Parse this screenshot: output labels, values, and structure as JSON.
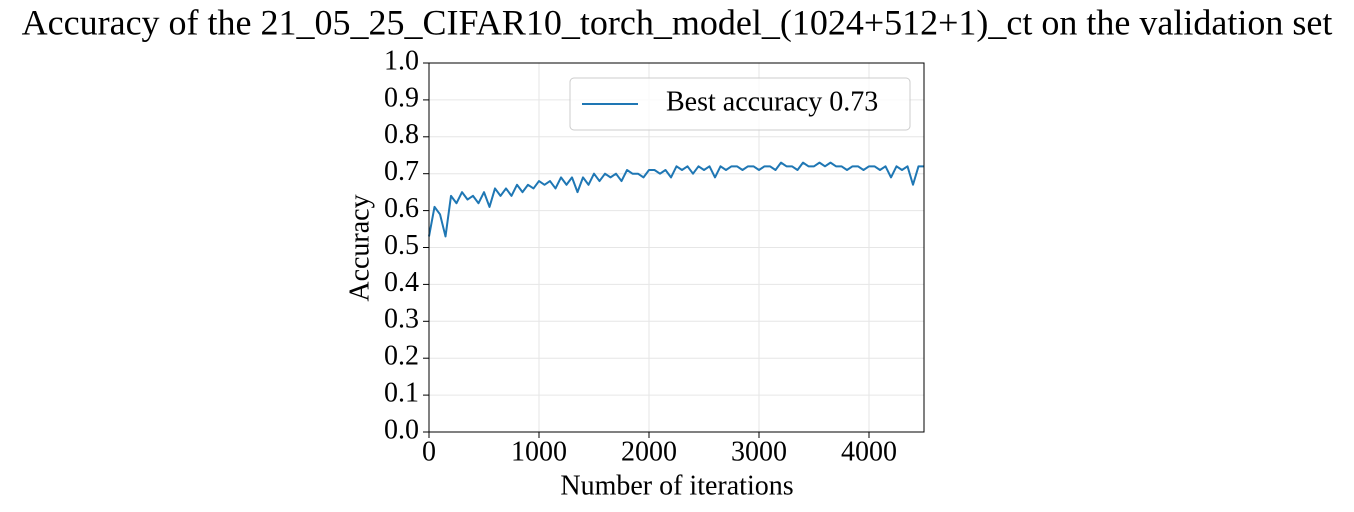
{
  "chart_data": {
    "type": "line",
    "title": "Accuracy of the 21_05_25_CIFAR10_torch_model_(1024+512+1)_ct on the validation set",
    "x_label": "Number of iterations",
    "y_label": "Accuracy",
    "x": [
      0,
      50,
      100,
      150,
      200,
      250,
      300,
      350,
      400,
      450,
      500,
      550,
      600,
      650,
      700,
      750,
      800,
      850,
      900,
      950,
      1000,
      1050,
      1100,
      1150,
      1200,
      1250,
      1300,
      1350,
      1400,
      1450,
      1500,
      1550,
      1600,
      1650,
      1700,
      1750,
      1800,
      1850,
      1900,
      1950,
      2000,
      2050,
      2100,
      2150,
      2200,
      2250,
      2300,
      2350,
      2400,
      2450,
      2500,
      2550,
      2600,
      2650,
      2700,
      2750,
      2800,
      2850,
      2900,
      2950,
      3000,
      3050,
      3100,
      3150,
      3200,
      3250,
      3300,
      3350,
      3400,
      3450,
      3500,
      3550,
      3600,
      3650,
      3700,
      3750,
      3800,
      3850,
      3900,
      3950,
      4000,
      4050,
      4100,
      4150,
      4200,
      4250,
      4300,
      4350,
      4400,
      4450,
      4500
    ],
    "series": [
      {
        "name": "Best accuracy 0.73",
        "color": "#1f77b4",
        "values": [
          0.53,
          0.61,
          0.59,
          0.53,
          0.64,
          0.62,
          0.65,
          0.63,
          0.64,
          0.62,
          0.65,
          0.61,
          0.66,
          0.64,
          0.66,
          0.64,
          0.67,
          0.65,
          0.67,
          0.66,
          0.68,
          0.67,
          0.68,
          0.66,
          0.69,
          0.67,
          0.69,
          0.65,
          0.69,
          0.67,
          0.7,
          0.68,
          0.7,
          0.69,
          0.7,
          0.68,
          0.71,
          0.7,
          0.7,
          0.69,
          0.71,
          0.71,
          0.7,
          0.71,
          0.69,
          0.72,
          0.71,
          0.72,
          0.7,
          0.72,
          0.71,
          0.72,
          0.69,
          0.72,
          0.71,
          0.72,
          0.72,
          0.71,
          0.72,
          0.72,
          0.71,
          0.72,
          0.72,
          0.71,
          0.73,
          0.72,
          0.72,
          0.71,
          0.73,
          0.72,
          0.72,
          0.73,
          0.72,
          0.73,
          0.72,
          0.72,
          0.71,
          0.72,
          0.72,
          0.71,
          0.72,
          0.72,
          0.71,
          0.72,
          0.69,
          0.72,
          0.71,
          0.72,
          0.67,
          0.72,
          0.72
        ]
      }
    ],
    "xlim": [
      0,
      4500
    ],
    "xticks": [
      0,
      1000,
      2000,
      3000,
      4000
    ],
    "ylim": [
      0,
      1
    ],
    "yticks": [
      {
        "value": 0,
        "label": "0.0"
      },
      0.1,
      0.2,
      0.3,
      0.4,
      0.5,
      0.6,
      0.7,
      0.8,
      0.9,
      {
        "value": 1,
        "label": "1.0"
      }
    ],
    "grid": true,
    "legend": "upper right"
  }
}
